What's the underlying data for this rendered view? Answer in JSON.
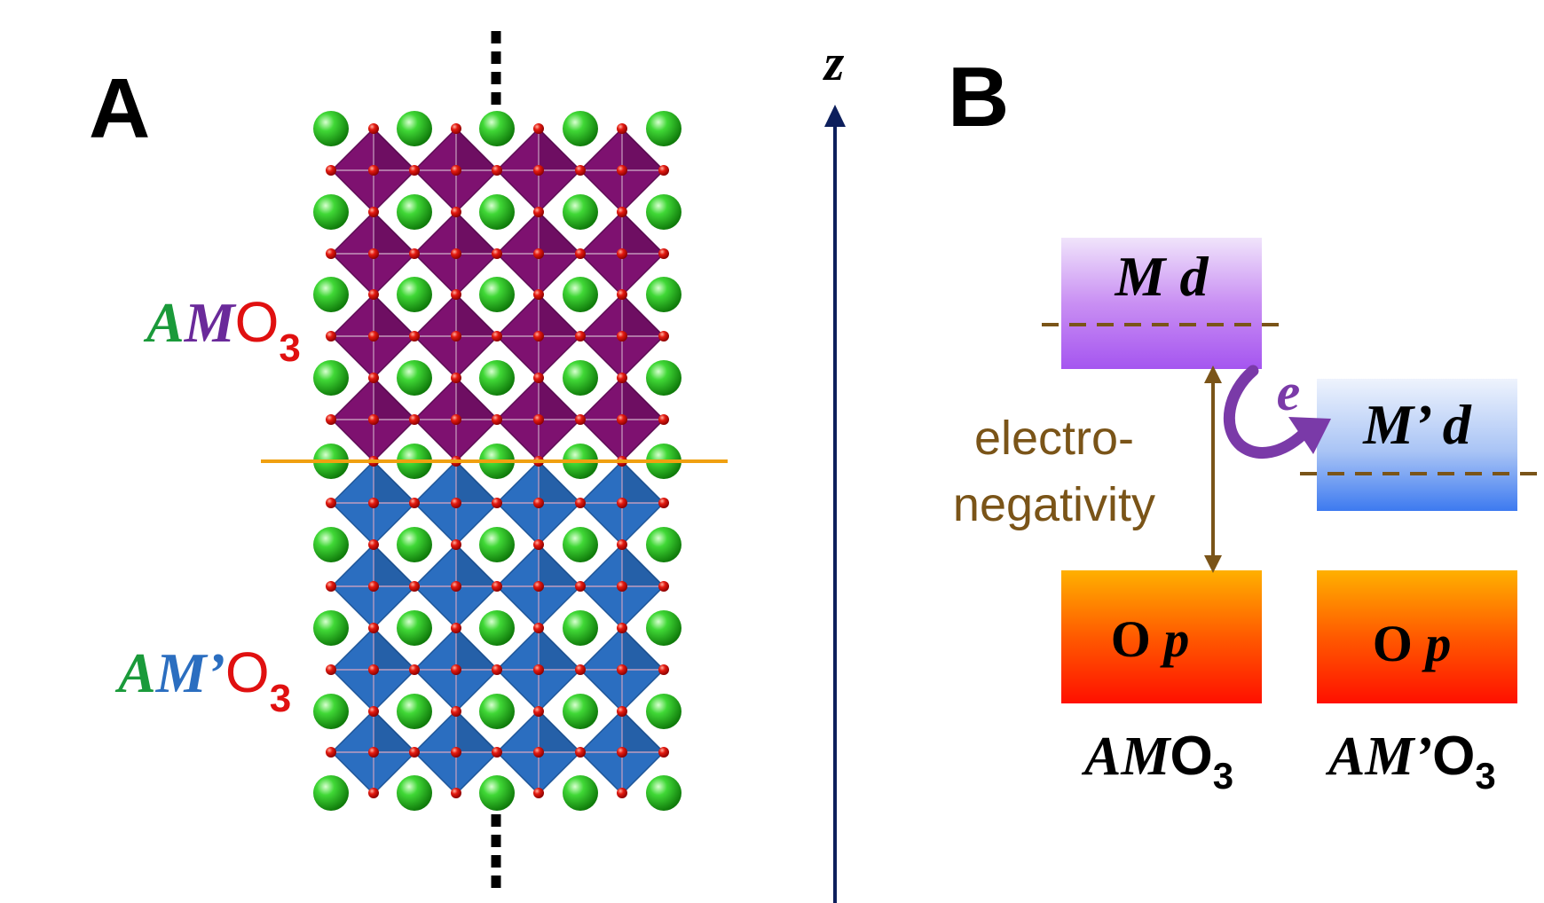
{
  "panel_a": {
    "label": "A",
    "top_layer": {
      "A": "A",
      "M": "M",
      "O": "O",
      "sub": "3"
    },
    "bottom_layer": {
      "A": "A",
      "M": "M’",
      "O": "O",
      "sub": "3"
    },
    "axis_label": "z"
  },
  "panel_b": {
    "label": "B",
    "m_d": {
      "M": "M",
      "d": "d"
    },
    "mp_d": {
      "M": "M’",
      "d": "d"
    },
    "o_p_left": {
      "O": "O",
      "p": "p"
    },
    "o_p_right": {
      "O": "O",
      "p": "p"
    },
    "electron": "e",
    "electronegativity_line1": "electro-",
    "electronegativity_line2": "negativity",
    "caption_left": {
      "A": "A",
      "M": "M",
      "O": "O",
      "sub": "3"
    },
    "caption_right": {
      "A": "A",
      "M": "M’",
      "O": "O",
      "sub": "3"
    }
  },
  "colors": {
    "green_atom": "#22c01a",
    "oxygen_atom": "#dd1111",
    "purple_octahedra": "#7e1170",
    "blue_octahedra": "#2b6ec0",
    "interface_line": "#f0a010",
    "axis_line": "#0d1f5c",
    "brown": "#7a5418",
    "label_green": "#1a9a3a",
    "label_purple": "#6a2a9a",
    "label_blue": "#2b6ec0",
    "label_red": "#e01010",
    "arrow_purple": "#7a3aa8"
  },
  "icons": [
    "green-atom-icon",
    "oxygen-atom-icon",
    "curved-arrow-icon",
    "axis-arrow-icon"
  ]
}
